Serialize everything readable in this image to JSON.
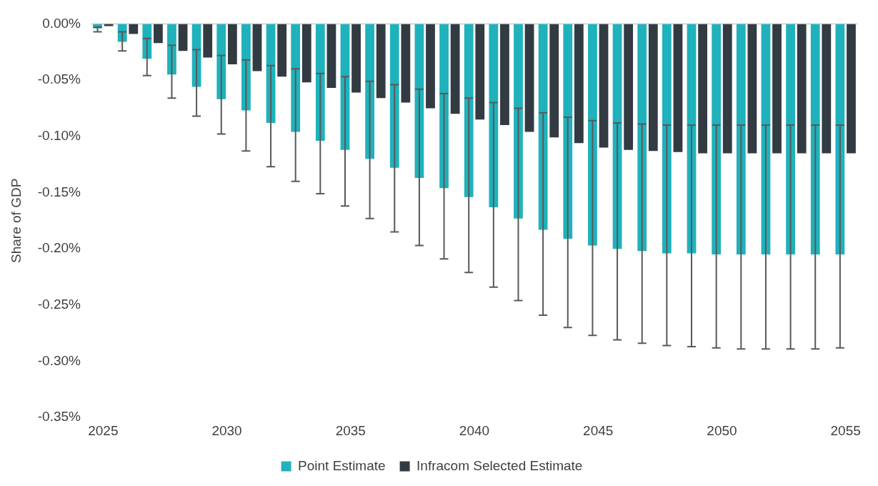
{
  "chart_data": {
    "type": "bar",
    "ylabel": "Share of GDP",
    "categories": [
      "2025",
      null,
      null,
      null,
      null,
      "2030",
      null,
      null,
      null,
      null,
      "2035",
      null,
      null,
      null,
      null,
      "2040",
      null,
      null,
      null,
      null,
      "2045",
      null,
      null,
      null,
      null,
      "2050",
      null,
      null,
      null,
      null,
      "2055"
    ],
    "series": [
      {
        "name": "Point Estimate",
        "color": "#1fb2bc",
        "values": [
          -0.004,
          -0.016,
          -0.031,
          -0.045,
          -0.056,
          -0.067,
          -0.077,
          -0.088,
          -0.096,
          -0.104,
          -0.112,
          -0.12,
          -0.128,
          -0.137,
          -0.146,
          -0.154,
          -0.163,
          -0.173,
          -0.183,
          -0.191,
          -0.197,
          -0.2,
          -0.202,
          -0.204,
          -0.204,
          -0.205,
          -0.205,
          -0.205,
          -0.205,
          -0.205,
          -0.205
        ],
        "errors": [
          [
            -0.007,
            -0.003
          ],
          [
            -0.024,
            -0.007
          ],
          [
            -0.046,
            -0.013
          ],
          [
            -0.066,
            -0.019
          ],
          [
            -0.082,
            -0.023
          ],
          [
            -0.098,
            -0.028
          ],
          [
            -0.113,
            -0.032
          ],
          [
            -0.127,
            -0.037
          ],
          [
            -0.14,
            -0.04
          ],
          [
            -0.151,
            -0.044
          ],
          [
            -0.162,
            -0.047
          ],
          [
            -0.173,
            -0.051
          ],
          [
            -0.185,
            -0.054
          ],
          [
            -0.197,
            -0.058
          ],
          [
            -0.209,
            -0.062
          ],
          [
            -0.221,
            -0.066
          ],
          [
            -0.234,
            -0.07
          ],
          [
            -0.246,
            -0.075
          ],
          [
            -0.259,
            -0.079
          ],
          [
            -0.27,
            -0.083
          ],
          [
            -0.277,
            -0.086
          ],
          [
            -0.281,
            -0.088
          ],
          [
            -0.284,
            -0.089
          ],
          [
            -0.286,
            -0.09
          ],
          [
            -0.287,
            -0.09
          ],
          [
            -0.288,
            -0.09
          ],
          [
            -0.289,
            -0.09
          ],
          [
            -0.289,
            -0.09
          ],
          [
            -0.289,
            -0.09
          ],
          [
            -0.289,
            -0.09
          ],
          [
            -0.288,
            -0.09
          ]
        ]
      },
      {
        "name": "Infracom Selected Estimate",
        "color": "#323a42",
        "values": [
          -0.002,
          -0.009,
          -0.017,
          -0.024,
          -0.03,
          -0.036,
          -0.042,
          -0.047,
          -0.052,
          -0.057,
          -0.061,
          -0.066,
          -0.07,
          -0.075,
          -0.08,
          -0.085,
          -0.09,
          -0.096,
          -0.101,
          -0.106,
          -0.11,
          -0.112,
          -0.113,
          -0.114,
          -0.115,
          -0.115,
          -0.115,
          -0.115,
          -0.115,
          -0.115,
          -0.115
        ]
      }
    ],
    "ylim": [
      -0.35,
      0
    ],
    "yticks": [
      {
        "value": 0,
        "label": "0.00%"
      },
      {
        "value": -0.05,
        "label": "-0.05%"
      },
      {
        "value": -0.1,
        "label": "-0.10%"
      },
      {
        "value": -0.15,
        "label": "-0.15%"
      },
      {
        "value": -0.2,
        "label": "-0.20%"
      },
      {
        "value": -0.25,
        "label": "-0.25%"
      },
      {
        "value": -0.3,
        "label": "-0.30%"
      },
      {
        "value": -0.35,
        "label": "-0.35%"
      }
    ],
    "grid": false,
    "legend": "bottom"
  }
}
